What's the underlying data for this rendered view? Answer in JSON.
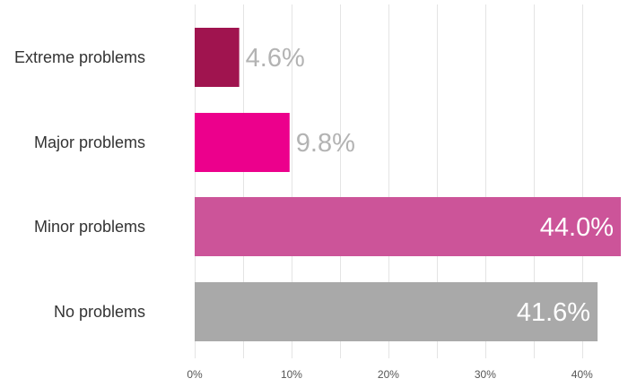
{
  "chart_data": {
    "type": "bar",
    "orientation": "horizontal",
    "categories": [
      "Extreme problems",
      "Major problems",
      "Minor problems",
      "No problems"
    ],
    "values": [
      4.6,
      9.8,
      44.0,
      41.6
    ],
    "value_labels": [
      "4.6%",
      "9.8%",
      "44.0%",
      "41.6%"
    ],
    "colors": [
      "#a0144f",
      "#ec008c",
      "#cc5499",
      "#a9a9a9"
    ],
    "xticks": [
      0,
      10,
      20,
      30,
      40
    ],
    "xtick_labels": [
      "0%",
      "10%",
      "20%",
      "30%",
      "40%"
    ],
    "xlim": [
      0,
      44
    ],
    "grid": true,
    "label_color_outside": "#b3b3b3",
    "label_color_inside": "#ffffff",
    "title": "",
    "xlabel": "",
    "ylabel": ""
  }
}
